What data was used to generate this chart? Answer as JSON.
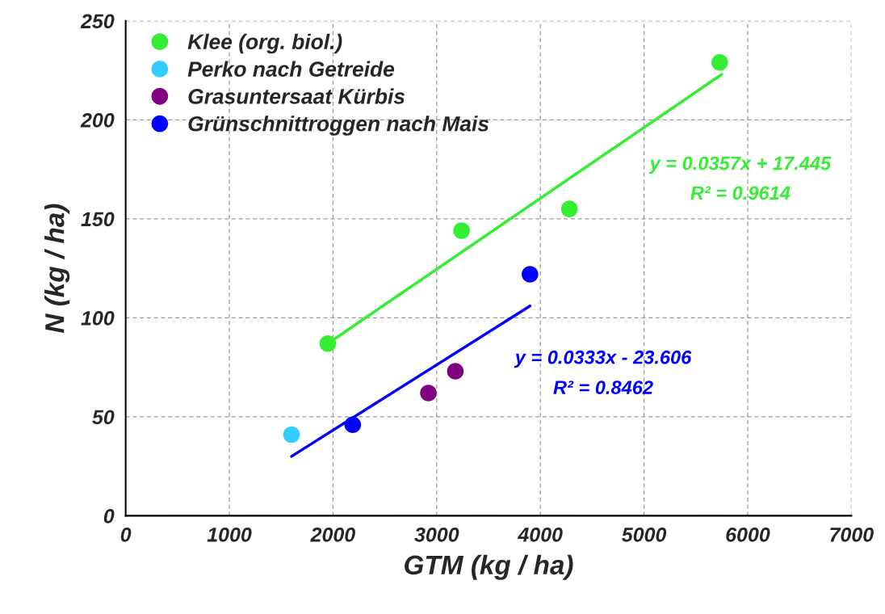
{
  "chart_data": {
    "type": "scatter",
    "xlabel": "GTM (kg / ha)",
    "ylabel": "N (kg / ha)",
    "xlim": [
      0,
      7000
    ],
    "xticks": [
      0,
      1000,
      2000,
      3000,
      4000,
      5000,
      6000,
      7000
    ],
    "ylim": [
      0,
      250
    ],
    "yticks": [
      0,
      50,
      100,
      150,
      200,
      250
    ],
    "grid": true,
    "legend": "top left",
    "marker": "circle",
    "series": [
      {
        "name": "Klee (org. biol.)",
        "color": "#33ee33",
        "x": [
          1950,
          3240,
          4280,
          5730
        ],
        "values": [
          87,
          144,
          155,
          229
        ]
      },
      {
        "name": "Perko nach Getreide",
        "color": "#33ccff",
        "x": [
          1600
        ],
        "values": [
          41
        ]
      },
      {
        "name": "Grasuntersaat Kürbis",
        "color": "#800080",
        "x": [
          2920,
          3180
        ],
        "values": [
          62,
          73
        ]
      },
      {
        "name": "Grünschnittroggen nach Mais",
        "color": "#0000ff",
        "x": [
          2190,
          3900
        ],
        "values": [
          46,
          122
        ]
      },
      {
        "type": "line",
        "marker": "none",
        "color": "#33ee33",
        "x": [
          1950,
          5750
        ],
        "values": [
          87,
          223
        ]
      },
      {
        "type": "line",
        "marker": "none",
        "color": "#0000ff",
        "x": [
          1600,
          3900
        ],
        "values": [
          30,
          106
        ]
      }
    ],
    "annotations": [
      "y = 0.0357x + 17.445",
      "R² = 0.9614",
      "y = 0.0333x - 23.606",
      "R² = 0.8462"
    ]
  }
}
